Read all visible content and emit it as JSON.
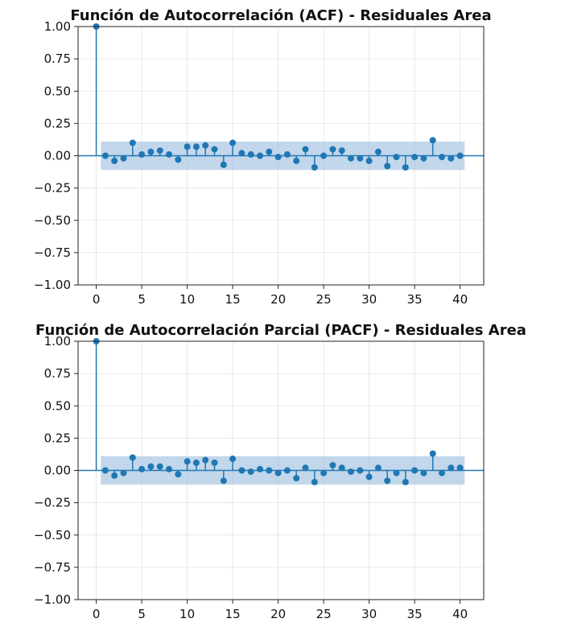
{
  "chart_data": [
    {
      "type": "stem",
      "title": "Función de Autocorrelación (ACF) - Residuales Area",
      "xlim": [
        -2,
        42.6
      ],
      "ylim": [
        -1.0,
        1.0
      ],
      "xticks": [
        0,
        5,
        10,
        15,
        20,
        25,
        30,
        35,
        40
      ],
      "yticks": [
        1.0,
        0.75,
        0.5,
        0.25,
        0.0,
        -0.25,
        -0.5,
        -0.75,
        -1.0
      ],
      "xtick_labels": [
        "0",
        "5",
        "10",
        "15",
        "20",
        "25",
        "30",
        "35",
        "40"
      ],
      "ytick_labels": [
        "1.00",
        "0.75",
        "0.50",
        "0.25",
        "0.00",
        "−0.25",
        "−0.50",
        "−0.75",
        "−1.00"
      ],
      "grid": true,
      "confidence_band": {
        "x_start": 0.5,
        "x_end": 40.5,
        "lower": -0.11,
        "upper": 0.11,
        "color": "#a8c6e2"
      },
      "color": "#1f77b4",
      "lags": [
        0,
        1,
        2,
        3,
        4,
        5,
        6,
        7,
        8,
        9,
        10,
        11,
        12,
        13,
        14,
        15,
        16,
        17,
        18,
        19,
        20,
        21,
        22,
        23,
        24,
        25,
        26,
        27,
        28,
        29,
        30,
        31,
        32,
        33,
        34,
        35,
        36,
        37,
        38,
        39,
        40
      ],
      "values": [
        1.0,
        0.0,
        -0.04,
        -0.02,
        0.1,
        0.01,
        0.03,
        0.04,
        0.01,
        -0.03,
        0.07,
        0.07,
        0.08,
        0.05,
        -0.07,
        0.1,
        0.02,
        0.01,
        0.0,
        0.03,
        -0.01,
        0.01,
        -0.04,
        0.05,
        -0.09,
        0.0,
        0.05,
        0.04,
        -0.02,
        -0.02,
        -0.04,
        0.03,
        -0.08,
        -0.01,
        -0.09,
        -0.01,
        -0.02,
        0.12,
        -0.01,
        -0.02,
        0.0
      ]
    },
    {
      "type": "stem",
      "title": "Función de Autocorrelación Parcial (PACF) - Residuales Area",
      "xlim": [
        -2,
        42.6
      ],
      "ylim": [
        -1.0,
        1.0
      ],
      "xticks": [
        0,
        5,
        10,
        15,
        20,
        25,
        30,
        35,
        40
      ],
      "yticks": [
        1.0,
        0.75,
        0.5,
        0.25,
        0.0,
        -0.25,
        -0.5,
        -0.75,
        -1.0
      ],
      "xtick_labels": [
        "0",
        "5",
        "10",
        "15",
        "20",
        "25",
        "30",
        "35",
        "40"
      ],
      "ytick_labels": [
        "1.00",
        "0.75",
        "0.50",
        "0.25",
        "0.00",
        "−0.25",
        "−0.50",
        "−0.75",
        "−1.00"
      ],
      "grid": true,
      "confidence_band": {
        "x_start": 0.5,
        "x_end": 40.5,
        "lower": -0.11,
        "upper": 0.11,
        "color": "#a8c6e2"
      },
      "color": "#1f77b4",
      "lags": [
        0,
        1,
        2,
        3,
        4,
        5,
        6,
        7,
        8,
        9,
        10,
        11,
        12,
        13,
        14,
        15,
        16,
        17,
        18,
        19,
        20,
        21,
        22,
        23,
        24,
        25,
        26,
        27,
        28,
        29,
        30,
        31,
        32,
        33,
        34,
        35,
        36,
        37,
        38,
        39,
        40
      ],
      "values": [
        1.0,
        0.0,
        -0.04,
        -0.02,
        0.1,
        0.01,
        0.03,
        0.03,
        0.01,
        -0.03,
        0.07,
        0.06,
        0.08,
        0.06,
        -0.08,
        0.09,
        0.0,
        -0.01,
        0.01,
        0.0,
        -0.02,
        0.0,
        -0.06,
        0.02,
        -0.09,
        -0.02,
        0.04,
        0.02,
        -0.01,
        0.0,
        -0.05,
        0.02,
        -0.08,
        -0.02,
        -0.09,
        0.0,
        -0.02,
        0.13,
        -0.02,
        0.02,
        0.02
      ]
    }
  ]
}
